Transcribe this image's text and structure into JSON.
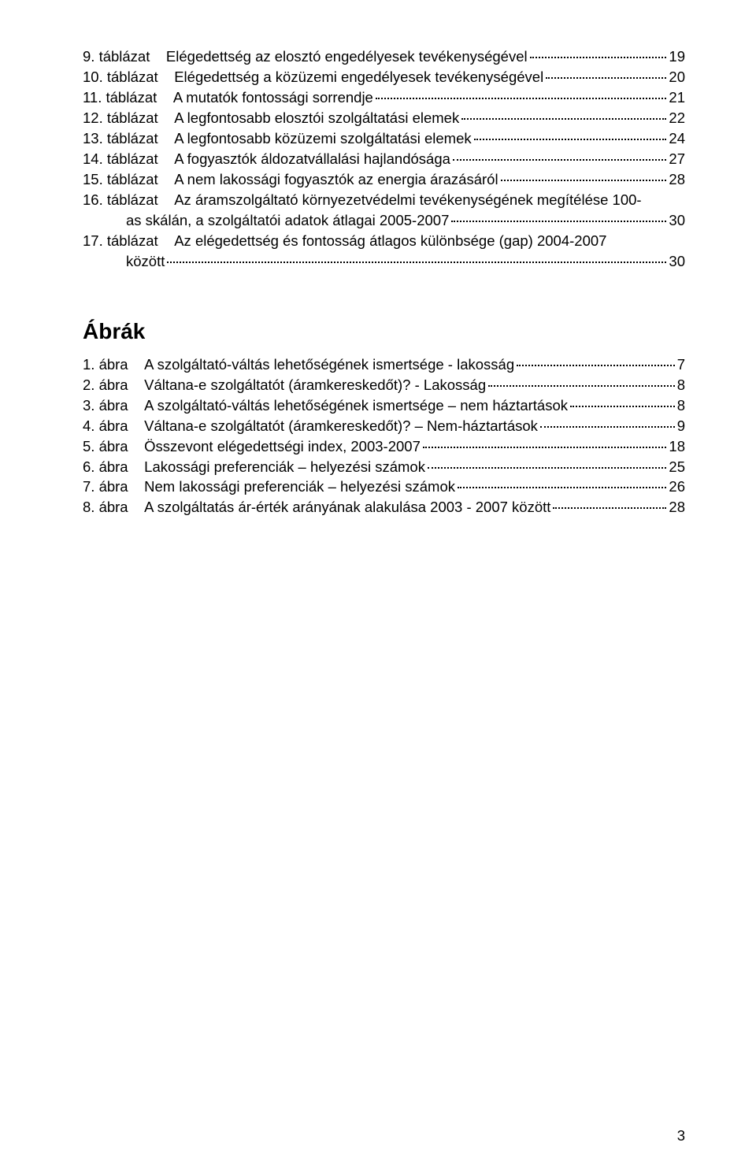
{
  "tables": [
    {
      "label": "9. táblázat",
      "text": "Elégedettség az elosztó engedélyesek tevékenységével",
      "page": "19",
      "continuation": null
    },
    {
      "label": "10. táblázat",
      "text": "Elégedettség a közüzemi engedélyesek tevékenységével",
      "page": "20",
      "continuation": null
    },
    {
      "label": "11. táblázat",
      "text": "A mutatók fontossági sorrendje",
      "page": "21",
      "continuation": null
    },
    {
      "label": "12. táblázat",
      "text": "A legfontosabb elosztói szolgáltatási elemek",
      "page": "22",
      "continuation": null
    },
    {
      "label": "13. táblázat",
      "text": "A legfontosabb közüzemi szolgáltatási elemek",
      "page": "24",
      "continuation": null
    },
    {
      "label": "14. táblázat",
      "text": "A fogyasztók áldozatvállalási hajlandósága",
      "page": "27",
      "continuation": null
    },
    {
      "label": "15. táblázat",
      "text": "A nem lakossági fogyasztók az energia árazásáról",
      "page": "28",
      "continuation": null
    },
    {
      "label": "16. táblázat",
      "text": "Az áramszolgáltató környezetvédelmi tevékenységének megítélése 100-",
      "page": null,
      "continuation": {
        "indent": true,
        "text": "as skálán, a szolgáltatói adatok átlagai 2005-2007",
        "page": "30"
      }
    },
    {
      "label": "17. táblázat",
      "text": "Az elégedettség és fontosság átlagos különbsége (gap) 2004-2007",
      "page": null,
      "continuation": {
        "indent": true,
        "text": "között   ",
        "page": "30"
      }
    }
  ],
  "figures_heading": "Ábrák",
  "figures": [
    {
      "label": "1. ábra",
      "text": "A szolgáltató-váltás lehetőségének ismertsége - lakosság",
      "page": "7"
    },
    {
      "label": "2. ábra",
      "text": "Váltana-e szolgáltatót (áramkereskedőt)? - Lakosság",
      "page": "8"
    },
    {
      "label": "3. ábra",
      "text": "A szolgáltató-váltás lehetőségének ismertsége – nem háztartások",
      "page": "8"
    },
    {
      "label": "4. ábra",
      "text": "Váltana-e szolgáltatót (áramkereskedőt)? – Nem-háztartások",
      "page": "9"
    },
    {
      "label": "5. ábra",
      "text": "Összevont elégedettségi index,  2003-2007",
      "page": "18"
    },
    {
      "label": "6. ábra",
      "text": "Lakossági preferenciák – helyezési számok",
      "page": "25"
    },
    {
      "label": "7. ábra",
      "text": "Nem lakossági preferenciák – helyezési számok",
      "page": "26"
    },
    {
      "label": "8. ábra",
      "text": "A szolgáltatás ár-érték arányának alakulása  2003 - 2007 között",
      "page": "28"
    }
  ],
  "page_number": "3"
}
